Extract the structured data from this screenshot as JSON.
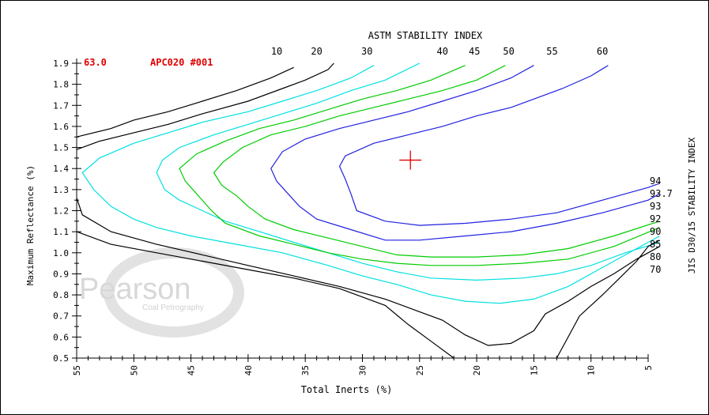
{
  "chart_data": {
    "type": "line",
    "title": "",
    "xlabel": "Total Inerts (%)",
    "ylabel": "Maximum Reflectance (%)",
    "xlim": [
      55,
      5
    ],
    "ylim": [
      0.5,
      1.9
    ],
    "x_ticks": [
      "55",
      "50",
      "45",
      "40",
      "35",
      "30",
      "25",
      "20",
      "15",
      "10",
      "5"
    ],
    "y_ticks": [
      "0.5",
      "0.6",
      "0.7",
      "0.8",
      "0.9",
      "1.0",
      "1.1",
      "1.2",
      "1.3",
      "1.4",
      "1.5",
      "1.6",
      "1.7",
      "1.8",
      "1.9"
    ],
    "header_left": "63.0",
    "header_sample": "APC020 #001",
    "top_axis_title": "ASTM STABILITY INDEX",
    "right_axis_title": "JIS D30/15 STABILITY INDEX",
    "watermark": {
      "name": "Pearson",
      "sub": "Coal Petrography"
    },
    "marker": {
      "x": 25.8,
      "y": 1.44,
      "color": "#e00000"
    },
    "colors": {
      "black": "#000000",
      "cyan": "#00e0e0",
      "green": "#00cc00",
      "blue": "#2020e0",
      "red": "#e00000"
    },
    "series": [
      {
        "name": "10",
        "color": "#000000",
        "points": [
          [
            55,
            1.55
          ],
          [
            52,
            1.59
          ],
          [
            50,
            1.63
          ],
          [
            47,
            1.67
          ],
          [
            44,
            1.72
          ],
          [
            41,
            1.77
          ],
          [
            38,
            1.83
          ],
          [
            36,
            1.88
          ]
        ]
      },
      {
        "name": "20",
        "color": "#000000",
        "points": [
          [
            55,
            1.49
          ],
          [
            53,
            1.53
          ],
          [
            50,
            1.57
          ],
          [
            47,
            1.61
          ],
          [
            44,
            1.66
          ],
          [
            40,
            1.72
          ],
          [
            37,
            1.78
          ],
          [
            35,
            1.82
          ],
          [
            33,
            1.87
          ],
          [
            32.5,
            1.9
          ]
        ]
      },
      {
        "name": "30",
        "color": "#00e0e0",
        "points": [
          [
            29,
            1.89
          ],
          [
            31,
            1.83
          ],
          [
            34,
            1.77
          ],
          [
            37,
            1.72
          ],
          [
            40,
            1.67
          ],
          [
            44,
            1.62
          ],
          [
            47,
            1.57
          ],
          [
            50,
            1.52
          ],
          [
            53,
            1.45
          ],
          [
            54.5,
            1.38
          ],
          [
            53.5,
            1.3
          ],
          [
            52,
            1.22
          ],
          [
            50,
            1.16
          ],
          [
            48,
            1.12
          ],
          [
            45,
            1.08
          ],
          [
            41,
            1.04
          ],
          [
            37,
            1.0
          ],
          [
            33,
            0.94
          ],
          [
            30,
            0.89
          ],
          [
            27,
            0.85
          ],
          [
            24,
            0.8
          ],
          [
            21,
            0.77
          ],
          [
            18,
            0.76
          ],
          [
            15,
            0.78
          ],
          [
            12,
            0.84
          ],
          [
            9,
            0.93
          ],
          [
            6,
            1.02
          ],
          [
            4,
            1.08
          ]
        ]
      },
      {
        "name": "40",
        "color": "#00e0e0",
        "points": [
          [
            25,
            1.9
          ],
          [
            28,
            1.82
          ],
          [
            31,
            1.77
          ],
          [
            34,
            1.71
          ],
          [
            37,
            1.66
          ],
          [
            40,
            1.61
          ],
          [
            43,
            1.56
          ],
          [
            46,
            1.5
          ],
          [
            47.5,
            1.44
          ],
          [
            48,
            1.38
          ],
          [
            47.3,
            1.3
          ],
          [
            46,
            1.25
          ],
          [
            44,
            1.2
          ],
          [
            42,
            1.15
          ],
          [
            39,
            1.1
          ],
          [
            36,
            1.05
          ],
          [
            33,
            1.0
          ],
          [
            30,
            0.95
          ],
          [
            27,
            0.91
          ],
          [
            24,
            0.88
          ],
          [
            20,
            0.87
          ],
          [
            16,
            0.88
          ],
          [
            13,
            0.9
          ],
          [
            10,
            0.94
          ],
          [
            7,
            1.0
          ],
          [
            4,
            1.05
          ]
        ]
      },
      {
        "name": "45",
        "color": "#00cc00",
        "points": [
          [
            21,
            1.89
          ],
          [
            24,
            1.82
          ],
          [
            27,
            1.77
          ],
          [
            30,
            1.73
          ],
          [
            33,
            1.68
          ],
          [
            36,
            1.63
          ],
          [
            39,
            1.59
          ],
          [
            42,
            1.53
          ],
          [
            44.5,
            1.47
          ],
          [
            46,
            1.4
          ],
          [
            45.5,
            1.34
          ],
          [
            44.5,
            1.28
          ],
          [
            43.2,
            1.2
          ],
          [
            42,
            1.14
          ],
          [
            39,
            1.08
          ],
          [
            36,
            1.04
          ],
          [
            33,
            1.0
          ],
          [
            30,
            0.97
          ],
          [
            27,
            0.95
          ],
          [
            24,
            0.94
          ],
          [
            20,
            0.94
          ],
          [
            16,
            0.95
          ],
          [
            12,
            0.97
          ],
          [
            8,
            1.03
          ],
          [
            4,
            1.12
          ]
        ]
      },
      {
        "name": "50",
        "color": "#00cc00",
        "points": [
          [
            17.5,
            1.89
          ],
          [
            20,
            1.82
          ],
          [
            23,
            1.77
          ],
          [
            26,
            1.73
          ],
          [
            29,
            1.69
          ],
          [
            32,
            1.65
          ],
          [
            35,
            1.6
          ],
          [
            38,
            1.56
          ],
          [
            40.5,
            1.5
          ],
          [
            42.2,
            1.43
          ],
          [
            43,
            1.38
          ],
          [
            42.3,
            1.32
          ],
          [
            41,
            1.27
          ],
          [
            40,
            1.22
          ],
          [
            38.5,
            1.16
          ],
          [
            36,
            1.11
          ],
          [
            33,
            1.07
          ],
          [
            30,
            1.03
          ],
          [
            27,
            0.99
          ],
          [
            24,
            0.98
          ],
          [
            20,
            0.98
          ],
          [
            16,
            0.99
          ],
          [
            12,
            1.02
          ],
          [
            8,
            1.08
          ],
          [
            4,
            1.15
          ]
        ]
      },
      {
        "name": "55",
        "color": "#2020e0",
        "points": [
          [
            15,
            1.89
          ],
          [
            17,
            1.83
          ],
          [
            20,
            1.77
          ],
          [
            23,
            1.72
          ],
          [
            26,
            1.67
          ],
          [
            29,
            1.63
          ],
          [
            32,
            1.59
          ],
          [
            35,
            1.54
          ],
          [
            37,
            1.48
          ],
          [
            38,
            1.4
          ],
          [
            37.5,
            1.34
          ],
          [
            36.5,
            1.28
          ],
          [
            35.5,
            1.22
          ],
          [
            34,
            1.16
          ],
          [
            31,
            1.11
          ],
          [
            28,
            1.06
          ],
          [
            25,
            1.06
          ],
          [
            21,
            1.08
          ],
          [
            17,
            1.1
          ],
          [
            13,
            1.14
          ],
          [
            9,
            1.19
          ],
          [
            5,
            1.25
          ],
          [
            4,
            1.28
          ]
        ]
      },
      {
        "name": "60",
        "color": "#2020e0",
        "points": [
          [
            8.5,
            1.89
          ],
          [
            10,
            1.84
          ],
          [
            12.5,
            1.78
          ],
          [
            15,
            1.73
          ],
          [
            17,
            1.69
          ],
          [
            20,
            1.65
          ],
          [
            23,
            1.6
          ],
          [
            26,
            1.56
          ],
          [
            29,
            1.52
          ],
          [
            31.5,
            1.46
          ],
          [
            32,
            1.41
          ],
          [
            31.5,
            1.35
          ],
          [
            31,
            1.28
          ],
          [
            30.5,
            1.2
          ],
          [
            28,
            1.15
          ],
          [
            25,
            1.13
          ],
          [
            21,
            1.14
          ],
          [
            17,
            1.16
          ],
          [
            13,
            1.19
          ],
          [
            9,
            1.25
          ],
          [
            5,
            1.31
          ],
          [
            4,
            1.33
          ]
        ]
      },
      {
        "name": "70",
        "color": "#000000",
        "points": [
          [
            13,
            0.5
          ],
          [
            12,
            0.6
          ],
          [
            11,
            0.7
          ],
          [
            9,
            0.8
          ],
          [
            7.5,
            0.88
          ],
          [
            6,
            0.96
          ],
          [
            5,
            1.03
          ],
          [
            4,
            1.06
          ]
        ]
      },
      {
        "name": "80",
        "color": "#000000",
        "points": [
          [
            55,
            1.26
          ],
          [
            54.5,
            1.18
          ],
          [
            52,
            1.1
          ],
          [
            48,
            1.04
          ],
          [
            44,
            0.99
          ],
          [
            40,
            0.94
          ],
          [
            36,
            0.89
          ],
          [
            32,
            0.84
          ],
          [
            28,
            0.78
          ],
          [
            25,
            0.72
          ],
          [
            23,
            0.68
          ],
          [
            21,
            0.61
          ],
          [
            19,
            0.56
          ],
          [
            17,
            0.57
          ],
          [
            15,
            0.63
          ],
          [
            14,
            0.71
          ],
          [
            12,
            0.77
          ],
          [
            10,
            0.84
          ],
          [
            8,
            0.9
          ],
          [
            6,
            0.97
          ],
          [
            4,
            1.03
          ]
        ]
      },
      {
        "name": "85",
        "color": "#000000",
        "points": [
          [
            55,
            1.1
          ],
          [
            52,
            1.04
          ],
          [
            48,
            1.0
          ],
          [
            44,
            0.96
          ],
          [
            40,
            0.92
          ],
          [
            36,
            0.88
          ],
          [
            32,
            0.83
          ],
          [
            28,
            0.75
          ],
          [
            26,
            0.66
          ],
          [
            24,
            0.58
          ],
          [
            22,
            0.5
          ]
        ]
      }
    ],
    "top_labels": [
      {
        "text": "10",
        "x": 37.5
      },
      {
        "text": "20",
        "x": 34
      },
      {
        "text": "30",
        "x": 29.6
      },
      {
        "text": "40",
        "x": 23
      },
      {
        "text": "45",
        "x": 20.2
      },
      {
        "text": "50",
        "x": 17.2
      },
      {
        "text": "55",
        "x": 13.4
      },
      {
        "text": "60",
        "x": 9
      }
    ],
    "right_labels": [
      {
        "text": "94",
        "y": 1.34
      },
      {
        "text": "93.7",
        "y": 1.28
      },
      {
        "text": "93",
        "y": 1.22
      },
      {
        "text": "92",
        "y": 1.16
      },
      {
        "text": "90",
        "y": 1.1
      },
      {
        "text": "85",
        "y": 1.04
      },
      {
        "text": "80",
        "y": 0.98
      },
      {
        "text": "70",
        "y": 0.92
      }
    ]
  }
}
